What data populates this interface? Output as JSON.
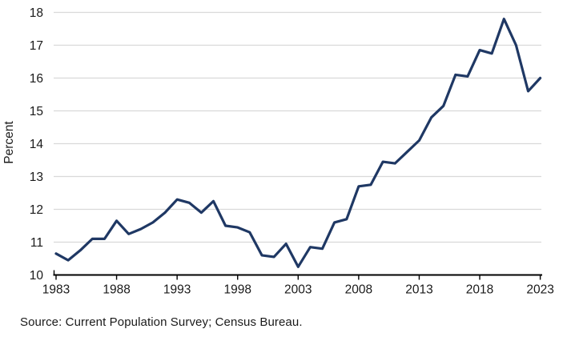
{
  "figure": {
    "title": "",
    "source_note": "Source: Current Population Survey; Census Bureau."
  },
  "chart_data": {
    "type": "line",
    "title": "",
    "xlabel": "",
    "ylabel": "Percent",
    "x": [
      1983,
      1984,
      1985,
      1986,
      1987,
      1988,
      1989,
      1990,
      1991,
      1992,
      1993,
      1994,
      1995,
      1996,
      1997,
      1998,
      1999,
      2000,
      2001,
      2002,
      2003,
      2004,
      2005,
      2006,
      2007,
      2008,
      2009,
      2010,
      2011,
      2012,
      2013,
      2014,
      2015,
      2016,
      2017,
      2018,
      2019,
      2020,
      2021,
      2022,
      2023
    ],
    "values": [
      10.65,
      10.45,
      10.75,
      11.1,
      11.1,
      11.65,
      11.25,
      11.4,
      11.6,
      11.9,
      12.3,
      12.2,
      11.9,
      12.25,
      11.5,
      11.45,
      11.3,
      10.6,
      10.55,
      10.95,
      10.25,
      10.85,
      10.8,
      11.6,
      11.7,
      12.7,
      12.75,
      13.45,
      13.4,
      13.75,
      14.1,
      14.8,
      15.15,
      16.1,
      16.05,
      16.85,
      16.75,
      17.8,
      17.0,
      15.6,
      16.0
    ],
    "series_name": "Percent",
    "xlim": [
      1983,
      2023
    ],
    "ylim": [
      10,
      18
    ],
    "x_ticks": [
      1983,
      1988,
      1993,
      1998,
      2003,
      2008,
      2013,
      2018,
      2023
    ],
    "y_ticks": [
      10,
      11,
      12,
      13,
      14,
      15,
      16,
      17,
      18
    ],
    "grid": "horizontal",
    "legend": "none",
    "source": "Source: Current Population Survey; Census Bureau.",
    "line_color": "#1F3864",
    "gridline_color": "#D9D9D9",
    "axis_color": "#000000",
    "text_color": "#1a1a1a"
  }
}
